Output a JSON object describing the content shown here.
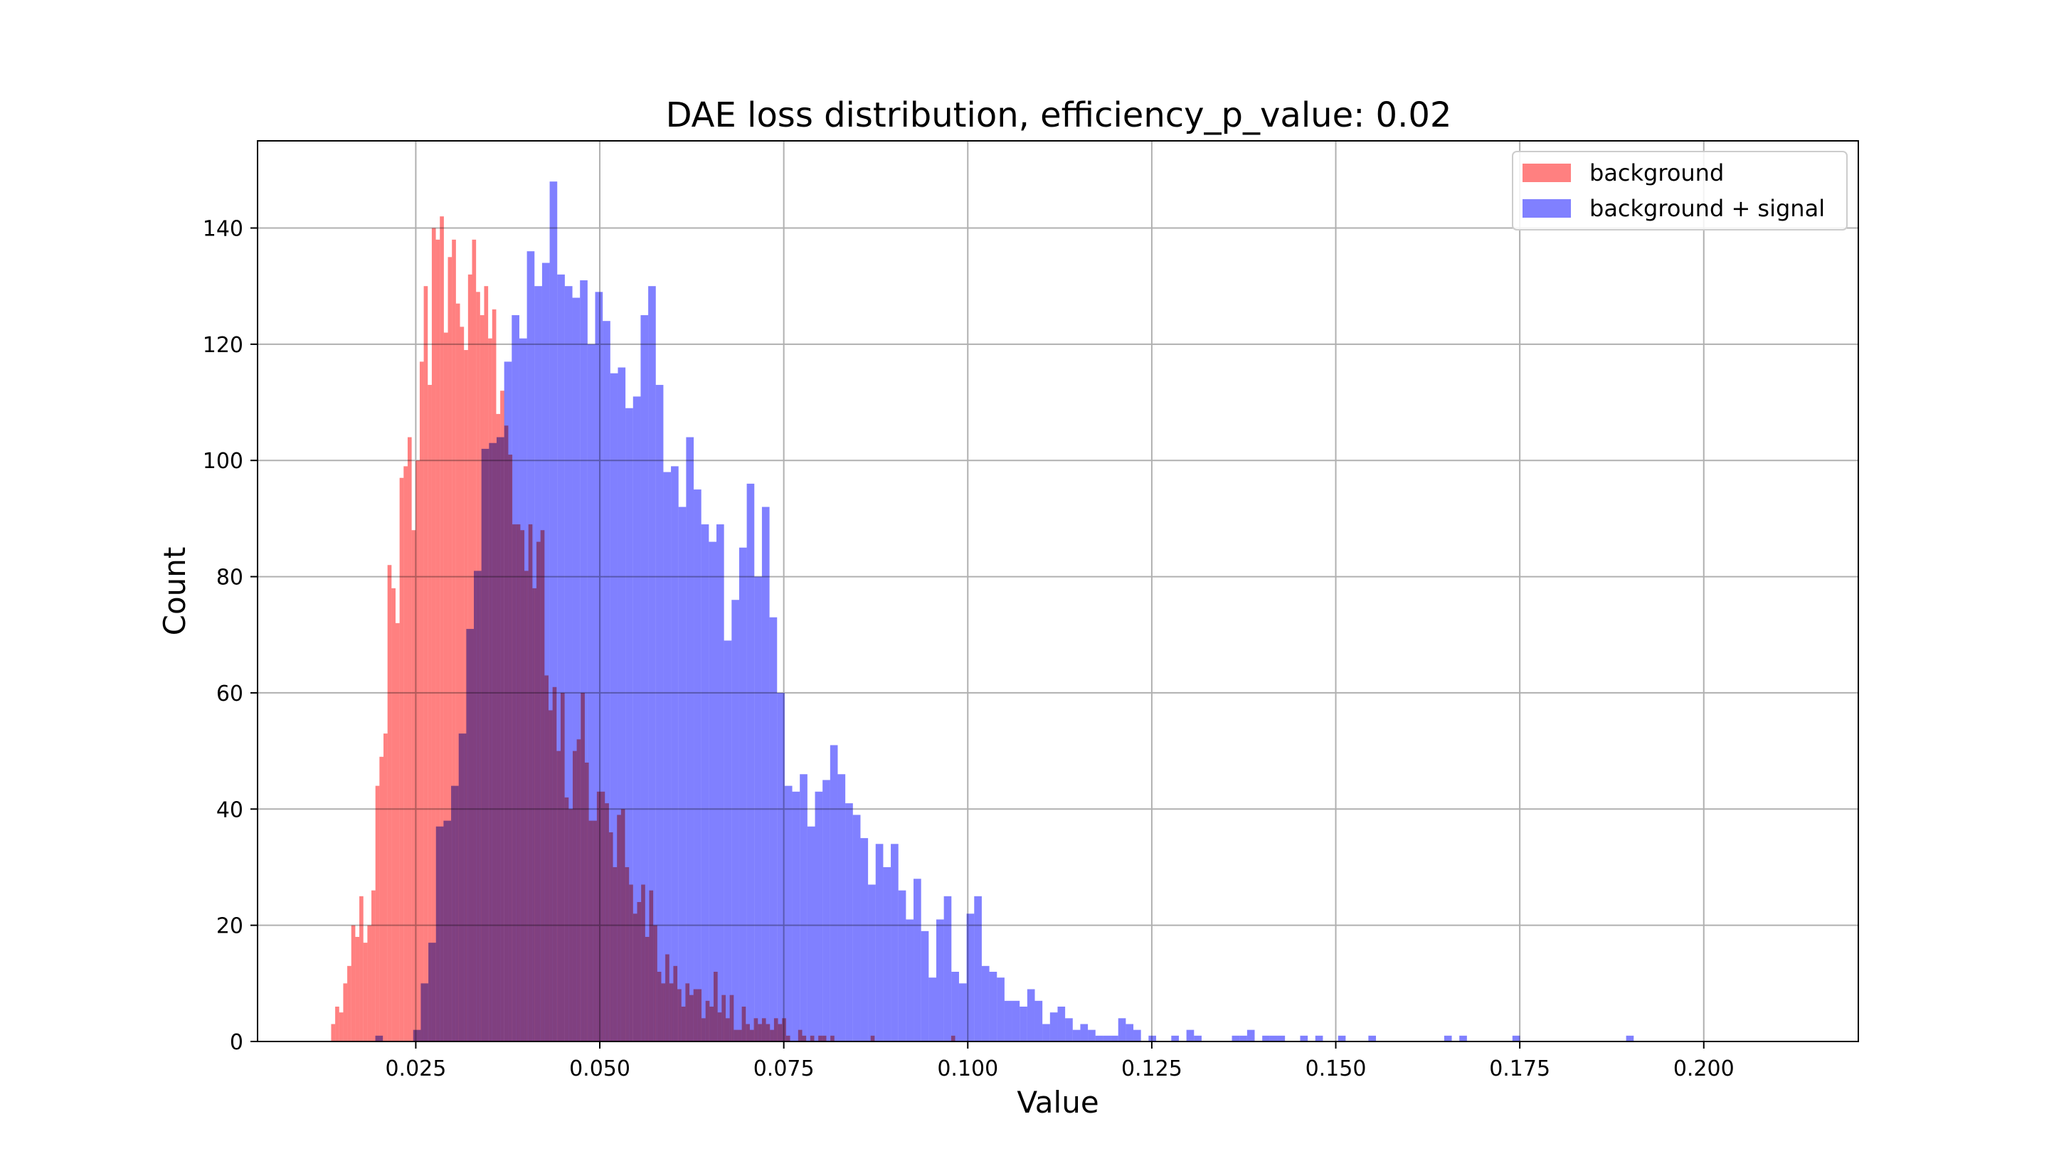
{
  "chart_data": {
    "type": "bar",
    "title": "DAE loss distribution, efficiency_p_value: 0.02",
    "xlabel": "Value",
    "ylabel": "Count",
    "xlim": [
      0.0035,
      0.221
    ],
    "ylim": [
      0,
      155
    ],
    "xticks": [
      0.025,
      0.05,
      0.075,
      0.1,
      0.125,
      0.15,
      0.175,
      0.2
    ],
    "xtick_labels": [
      "0.025",
      "0.050",
      "0.075",
      "0.100",
      "0.125",
      "0.150",
      "0.175",
      "0.200"
    ],
    "yticks": [
      0,
      20,
      40,
      60,
      80,
      100,
      120,
      140
    ],
    "ytick_labels": [
      "0",
      "20",
      "40",
      "60",
      "80",
      "100",
      "120",
      "140"
    ],
    "grid": true,
    "legend_position": "top-right",
    "series": [
      {
        "name": "background",
        "color": "#ff8080",
        "bins": {
          "start": 0.0135,
          "width": 0.000547,
          "counts": [
            3,
            6,
            5,
            10,
            13,
            20,
            18,
            25,
            17,
            20,
            26,
            44,
            49,
            53,
            82,
            78,
            72,
            97,
            99,
            104,
            88,
            100,
            117,
            130,
            113,
            140,
            138,
            142,
            122,
            135,
            138,
            127,
            123,
            119,
            132,
            138,
            129,
            125,
            130,
            121,
            126,
            108,
            112,
            106,
            101,
            89,
            89,
            88,
            81,
            89,
            78,
            86,
            88,
            63,
            57,
            61,
            50,
            60,
            42,
            40,
            50,
            52,
            60,
            48,
            38,
            38,
            43,
            43,
            41,
            36,
            30,
            39,
            40,
            30,
            27,
            22,
            24,
            27,
            18,
            26,
            20,
            12,
            10,
            15,
            10,
            13,
            9,
            6,
            10,
            8,
            9,
            9,
            4,
            7,
            6,
            12,
            5,
            8,
            4,
            8,
            2,
            2,
            6,
            3,
            2,
            4,
            3,
            4,
            3,
            2,
            4,
            3,
            4,
            1,
            0,
            0,
            2,
            1,
            0,
            1,
            0,
            1,
            1,
            0,
            1,
            0,
            0,
            0,
            0,
            0,
            0,
            0,
            0,
            0,
            1,
            0,
            0,
            0,
            0,
            0,
            0,
            0,
            0,
            0,
            0,
            0,
            0,
            0,
            0,
            0,
            0,
            0,
            0,
            0,
            1
          ]
        }
      },
      {
        "name": "background + signal",
        "color": "#8080ff",
        "bins": {
          "start": 0.0195,
          "width": 0.00103,
          "counts": [
            1,
            0,
            0,
            0,
            0,
            2,
            10,
            17,
            37,
            38,
            44,
            53,
            71,
            81,
            102,
            103,
            104,
            117,
            125,
            121,
            136,
            130,
            134,
            148,
            132,
            130,
            128,
            131,
            120,
            129,
            124,
            115,
            116,
            109,
            111,
            125,
            130,
            113,
            98,
            99,
            92,
            104,
            95,
            89,
            86,
            89,
            69,
            76,
            85,
            96,
            80,
            92,
            73,
            60,
            44,
            43,
            46,
            37,
            43,
            45,
            51,
            46,
            41,
            39,
            35,
            27,
            34,
            30,
            34,
            26,
            21,
            28,
            19,
            11,
            21,
            25,
            12,
            10,
            22,
            25,
            13,
            12,
            11,
            7,
            7,
            6,
            9,
            7,
            3,
            5,
            6,
            4,
            2,
            3,
            2,
            1,
            1,
            1,
            4,
            3,
            2,
            0,
            1,
            0,
            0,
            1,
            0,
            2,
            1,
            0,
            0,
            0,
            0,
            1,
            1,
            2,
            0,
            1,
            1,
            1,
            0,
            0,
            1,
            0,
            1,
            0,
            0,
            1,
            0,
            0,
            0,
            1,
            0,
            0,
            0,
            0,
            0,
            0,
            0,
            0,
            0,
            1,
            0,
            1,
            0,
            0,
            0,
            0,
            0,
            0,
            1,
            0,
            0,
            0,
            0,
            0,
            0,
            0,
            0,
            0,
            0,
            0,
            0,
            0,
            0,
            1
          ]
        }
      }
    ]
  }
}
